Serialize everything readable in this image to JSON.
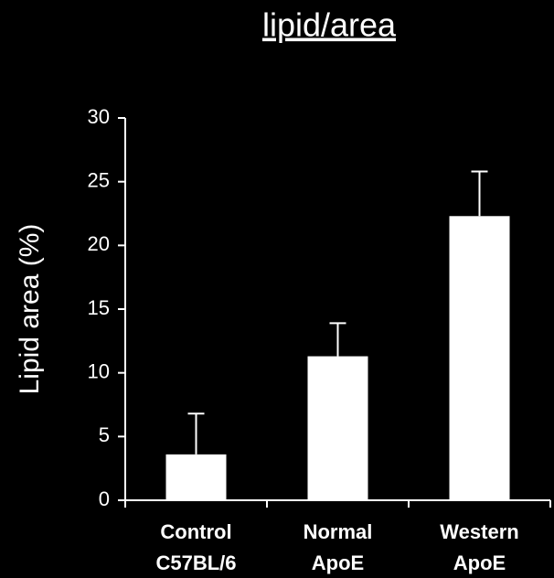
{
  "chart_data": {
    "type": "bar",
    "title": "lipid/area",
    "y_label": "Lipid area (%)",
    "categories": [
      [
        "Control",
        "C57BL/6"
      ],
      [
        "Normal",
        "ApoE"
      ],
      [
        "Western",
        "ApoE"
      ]
    ],
    "values": [
      3.6,
      11.3,
      22.3
    ],
    "errors": [
      3.2,
      2.6,
      3.5
    ],
    "color": "#ffffff",
    "ylim": [
      0,
      30
    ],
    "yticks": [
      0,
      5,
      10,
      15,
      20,
      25,
      30
    ],
    "grid": false
  }
}
